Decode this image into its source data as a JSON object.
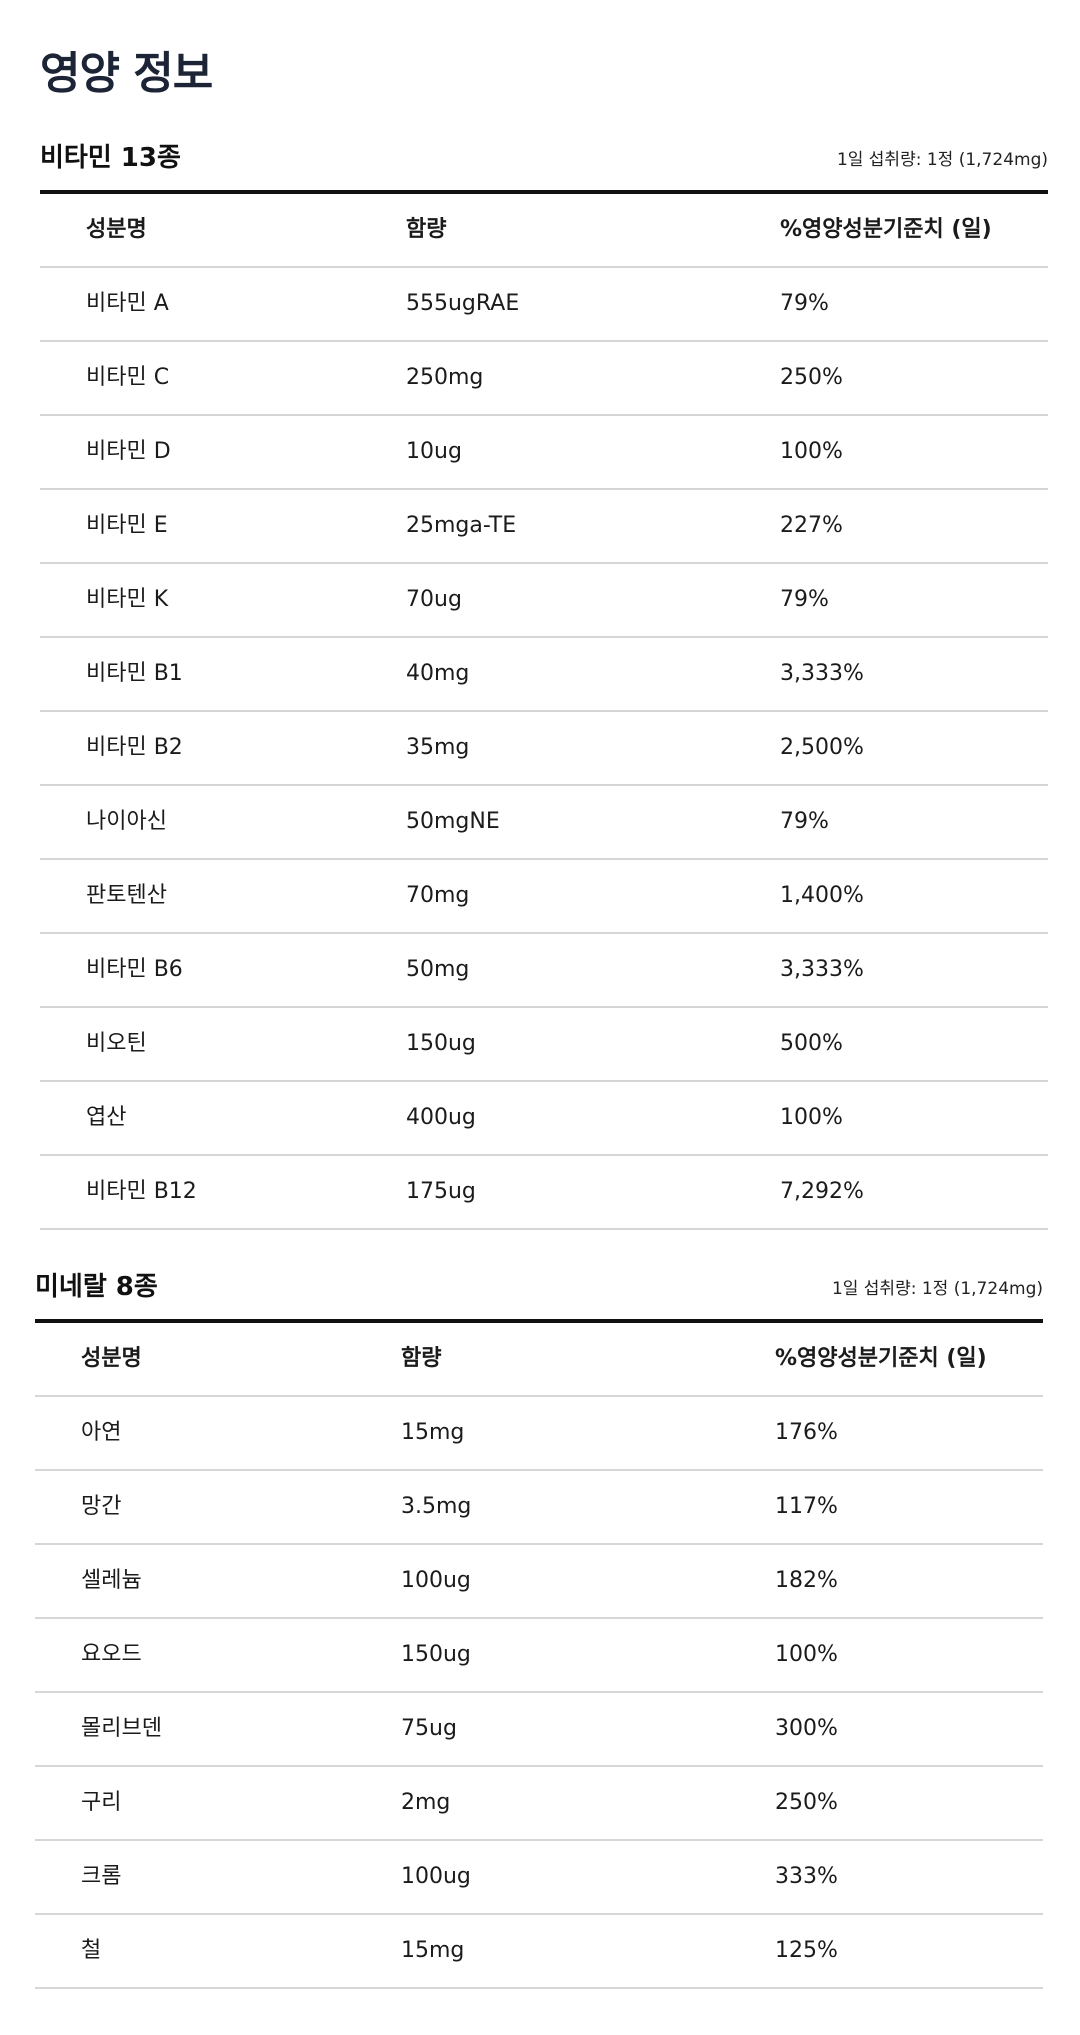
{
  "page_title": "영양 정보",
  "vitamins": {
    "title": "비타민 13종",
    "serving": "1일 섭취량: 1정 (1,724mg)",
    "headers": {
      "name": "성분명",
      "amount": "함량",
      "pct": "%영양성분기준치 (일)"
    },
    "rows": [
      {
        "name": "비타민 A",
        "amount": "555ugRAE",
        "pct": "79%"
      },
      {
        "name": "비타민 C",
        "amount": "250mg",
        "pct": "250%"
      },
      {
        "name": "비타민 D",
        "amount": "10ug",
        "pct": "100%"
      },
      {
        "name": "비타민 E",
        "amount": "25mga-TE",
        "pct": "227%"
      },
      {
        "name": "비타민 K",
        "amount": "70ug",
        "pct": "79%"
      },
      {
        "name": "비타민 B1",
        "amount": "40mg",
        "pct": "3,333%"
      },
      {
        "name": "비타민 B2",
        "amount": "35mg",
        "pct": "2,500%"
      },
      {
        "name": "나이아신",
        "amount": "50mgNE",
        "pct": "79%"
      },
      {
        "name": "판토텐산",
        "amount": "70mg",
        "pct": "1,400%"
      },
      {
        "name": "비타민 B6",
        "amount": "50mg",
        "pct": "3,333%"
      },
      {
        "name": "비오틴",
        "amount": "150ug",
        "pct": "500%"
      },
      {
        "name": "엽산",
        "amount": "400ug",
        "pct": "100%"
      },
      {
        "name": "비타민 B12",
        "amount": "175ug",
        "pct": "7,292%"
      }
    ]
  },
  "minerals": {
    "title": "미네랄 8종",
    "serving": "1일 섭취량: 1정 (1,724mg)",
    "headers": {
      "name": "성분명",
      "amount": "함량",
      "pct": "%영양성분기준치 (일)"
    },
    "rows": [
      {
        "name": "아연",
        "amount": "15mg",
        "pct": "176%"
      },
      {
        "name": "망간",
        "amount": "3.5mg",
        "pct": "117%"
      },
      {
        "name": "셀레늄",
        "amount": "100ug",
        "pct": "182%"
      },
      {
        "name": "요오드",
        "amount": "150ug",
        "pct": "100%"
      },
      {
        "name": "몰리브덴",
        "amount": "75ug",
        "pct": "300%"
      },
      {
        "name": "구리",
        "amount": "2mg",
        "pct": "250%"
      },
      {
        "name": "크롬",
        "amount": "100ug",
        "pct": "333%"
      },
      {
        "name": "철",
        "amount": "15mg",
        "pct": "125%"
      }
    ]
  }
}
